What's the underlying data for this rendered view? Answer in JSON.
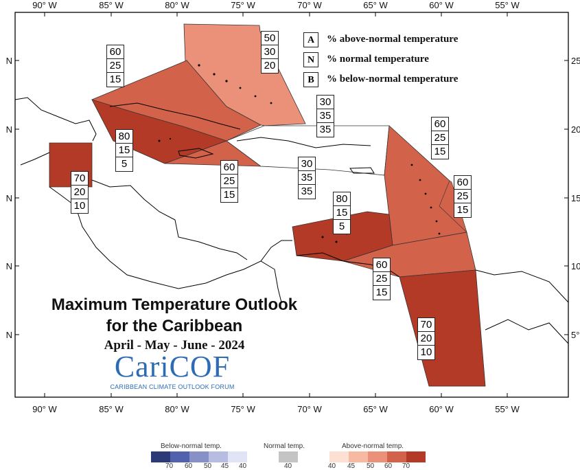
{
  "colors": {
    "above_40": "#fde0d4",
    "above_45": "#f7b9a1",
    "above_50": "#eb9079",
    "above_60": "#d2624a",
    "above_70": "#b23a26",
    "below_70": "#2c3a78",
    "below_60": "#5261ad",
    "below_50": "#8890c8",
    "below_45": "#b7bde2",
    "below_40": "#e0e4f5",
    "normal_40": "#c4c4c4"
  },
  "axis": {
    "top_labels": [
      "90° W",
      "85° W",
      "80° W",
      "75° W",
      "70° W",
      "65° W",
      "60° W",
      "55° W"
    ],
    "bottom_labels": [
      "90° W",
      "85° W",
      "80° W",
      "75° W",
      "70° W",
      "65° W",
      "60° W",
      "55° W"
    ],
    "left_labels": [
      "N",
      "N",
      "N",
      "N",
      "N"
    ],
    "right_labels": [
      "25",
      "20",
      "15",
      "10",
      "5°"
    ]
  },
  "key": {
    "rows": [
      {
        "letter": "A",
        "text": "% above-normal temperature"
      },
      {
        "letter": "N",
        "text": "% normal temperature"
      },
      {
        "letter": "B",
        "text": "% below-normal temperature"
      }
    ]
  },
  "regions": [
    {
      "id": "bahamas",
      "values": [
        "50",
        "30",
        "20"
      ]
    },
    {
      "id": "cuba",
      "values": [
        "60",
        "25",
        "15"
      ]
    },
    {
      "id": "hispaniola",
      "values": [
        "30",
        "35",
        "35"
      ]
    },
    {
      "id": "cayman",
      "values": [
        "80",
        "15",
        "5"
      ]
    },
    {
      "id": "jamaica",
      "values": [
        "60",
        "25",
        "15"
      ]
    },
    {
      "id": "belize",
      "values": [
        "70",
        "20",
        "10"
      ]
    },
    {
      "id": "puerto-rico",
      "values": [
        "30",
        "35",
        "35"
      ]
    },
    {
      "id": "leeward",
      "values": [
        "60",
        "25",
        "15"
      ]
    },
    {
      "id": "windward",
      "values": [
        "60",
        "25",
        "15"
      ]
    },
    {
      "id": "abc-islands",
      "values": [
        "80",
        "15",
        "5"
      ]
    },
    {
      "id": "trinidad",
      "values": [
        "60",
        "25",
        "15"
      ]
    },
    {
      "id": "guianas",
      "values": [
        "70",
        "20",
        "10"
      ]
    }
  ],
  "title": {
    "line1": "Maximum Temperature Outlook",
    "line2": "for the Caribbean",
    "season": "April - May - June - 2024"
  },
  "logo": {
    "main": "CariCOF",
    "subtitle": "CARIBBEAN CLIMATE OUTLOOK FORUM"
  },
  "color_legend": {
    "below_title": "Below-normal temp.",
    "normal_title": "Normal temp.",
    "above_title": "Above-normal temp.",
    "below_ticks": [
      "70",
      "60",
      "50",
      "45",
      "40"
    ],
    "normal_ticks": [
      "40"
    ],
    "above_ticks": [
      "40",
      "45",
      "50",
      "60",
      "70"
    ]
  }
}
